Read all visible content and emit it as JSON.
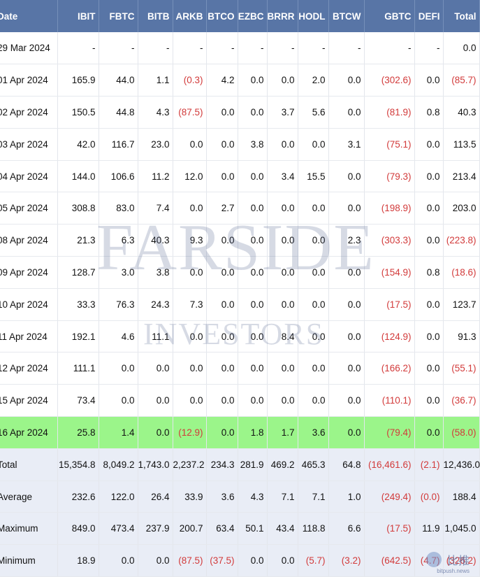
{
  "columns": [
    "Date",
    "IBIT",
    "FBTC",
    "BITB",
    "ARKB",
    "BTCO",
    "EZBC",
    "BRRR",
    "HODL",
    "BTCW",
    "GBTC",
    "DEFI",
    "Total"
  ],
  "rows": [
    {
      "type": "normal",
      "cells": [
        "29 Mar 2024",
        "-",
        "-",
        "-",
        "-",
        "-",
        "-",
        "-",
        "-",
        "-",
        "-",
        "-",
        "0.0"
      ]
    },
    {
      "type": "normal",
      "cells": [
        "01 Apr 2024",
        "165.9",
        "44.0",
        "1.1",
        "(0.3)",
        "4.2",
        "0.0",
        "0.0",
        "2.0",
        "0.0",
        "(302.6)",
        "0.0",
        "(85.7)"
      ]
    },
    {
      "type": "normal",
      "cells": [
        "02 Apr 2024",
        "150.5",
        "44.8",
        "4.3",
        "(87.5)",
        "0.0",
        "0.0",
        "3.7",
        "5.6",
        "0.0",
        "(81.9)",
        "0.8",
        "40.3"
      ]
    },
    {
      "type": "normal",
      "cells": [
        "03 Apr 2024",
        "42.0",
        "116.7",
        "23.0",
        "0.0",
        "0.0",
        "3.8",
        "0.0",
        "0.0",
        "3.1",
        "(75.1)",
        "0.0",
        "113.5"
      ]
    },
    {
      "type": "normal",
      "cells": [
        "04 Apr 2024",
        "144.0",
        "106.6",
        "11.2",
        "12.0",
        "0.0",
        "0.0",
        "3.4",
        "15.5",
        "0.0",
        "(79.3)",
        "0.0",
        "213.4"
      ]
    },
    {
      "type": "normal",
      "cells": [
        "05 Apr 2024",
        "308.8",
        "83.0",
        "7.4",
        "0.0",
        "2.7",
        "0.0",
        "0.0",
        "0.0",
        "0.0",
        "(198.9)",
        "0.0",
        "203.0"
      ]
    },
    {
      "type": "normal",
      "cells": [
        "08 Apr 2024",
        "21.3",
        "6.3",
        "40.3",
        "9.3",
        "0.0",
        "0.0",
        "0.0",
        "0.0",
        "2.3",
        "(303.3)",
        "0.0",
        "(223.8)"
      ]
    },
    {
      "type": "normal",
      "cells": [
        "09 Apr 2024",
        "128.7",
        "3.0",
        "3.8",
        "0.0",
        "0.0",
        "0.0",
        "0.0",
        "0.0",
        "0.0",
        "(154.9)",
        "0.8",
        "(18.6)"
      ]
    },
    {
      "type": "normal",
      "cells": [
        "10 Apr 2024",
        "33.3",
        "76.3",
        "24.3",
        "7.3",
        "0.0",
        "0.0",
        "0.0",
        "0.0",
        "0.0",
        "(17.5)",
        "0.0",
        "123.7"
      ]
    },
    {
      "type": "normal",
      "cells": [
        "11 Apr 2024",
        "192.1",
        "4.6",
        "11.1",
        "0.0",
        "0.0",
        "0.0",
        "8.4",
        "0.0",
        "0.0",
        "(124.9)",
        "0.0",
        "91.3"
      ]
    },
    {
      "type": "normal",
      "cells": [
        "12 Apr 2024",
        "111.1",
        "0.0",
        "0.0",
        "0.0",
        "0.0",
        "0.0",
        "0.0",
        "0.0",
        "0.0",
        "(166.2)",
        "0.0",
        "(55.1)"
      ]
    },
    {
      "type": "normal",
      "cells": [
        "15 Apr 2024",
        "73.4",
        "0.0",
        "0.0",
        "0.0",
        "0.0",
        "0.0",
        "0.0",
        "0.0",
        "0.0",
        "(110.1)",
        "0.0",
        "(36.7)"
      ]
    },
    {
      "type": "hl",
      "cells": [
        "16 Apr 2024",
        "25.8",
        "1.4",
        "0.0",
        "(12.9)",
        "0.0",
        "1.8",
        "1.7",
        "3.6",
        "0.0",
        "(79.4)",
        "0.0",
        "(58.0)"
      ]
    },
    {
      "type": "sum",
      "cells": [
        "Total",
        "15,354.8",
        "8,049.2",
        "1,743.0",
        "2,237.2",
        "234.3",
        "281.9",
        "469.2",
        "465.3",
        "64.8",
        "(16,461.6)",
        "(2.1)",
        "12,436.0"
      ]
    },
    {
      "type": "sum",
      "cells": [
        "Average",
        "232.6",
        "122.0",
        "26.4",
        "33.9",
        "3.6",
        "4.3",
        "7.1",
        "7.1",
        "1.0",
        "(249.4)",
        "(0.0)",
        "188.4"
      ]
    },
    {
      "type": "sum",
      "cells": [
        "Maximum",
        "849.0",
        "473.4",
        "237.9",
        "200.7",
        "63.4",
        "50.1",
        "43.4",
        "118.8",
        "6.6",
        "(17.5)",
        "11.9",
        "1,045.0"
      ]
    },
    {
      "type": "sum",
      "cells": [
        "Minimum",
        "18.9",
        "0.0",
        "0.0",
        "(87.5)",
        "(37.5)",
        "0.0",
        "0.0",
        "(5.7)",
        "(3.2)",
        "(642.5)",
        "(4.7)",
        "(326.2)"
      ]
    }
  ],
  "watermark": {
    "line1": "FARSIDE",
    "line2": "INVESTORS"
  },
  "logo": {
    "text": "比推",
    "url": "bitpush.news"
  },
  "colors": {
    "header_bg": "#5875a6",
    "highlight_row": "#9bf58a",
    "summary_row": "#e9edf6",
    "negative": "#d23a3a"
  }
}
